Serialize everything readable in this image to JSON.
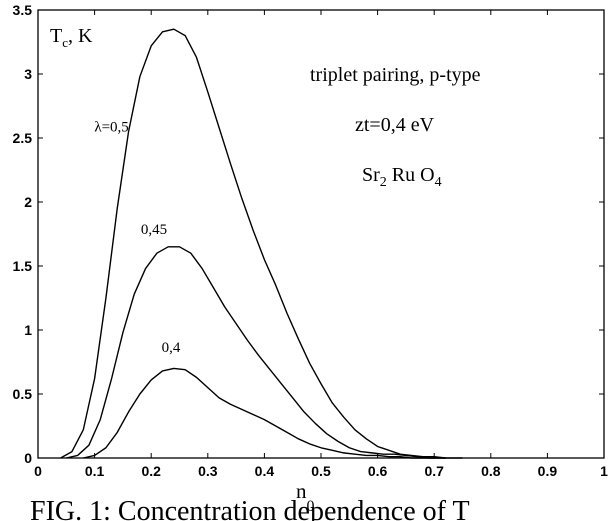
{
  "chart_data": {
    "type": "line",
    "xlabel": "n",
    "xlabel_sub": "0",
    "ylabel": "T",
    "ylabel_sub": "c",
    "ylabel_unit": ", K",
    "xlim": [
      0,
      1
    ],
    "ylim": [
      0,
      3.5
    ],
    "xticks": [
      "0",
      "0.1",
      "0.2",
      "0.3",
      "0.4",
      "0.5",
      "0.6",
      "0.7",
      "0.8",
      "0.9",
      "1"
    ],
    "yticks": [
      "0",
      "0.5",
      "1",
      "1.5",
      "2",
      "2.5",
      "3",
      "3.5"
    ],
    "grid": false,
    "annotations": {
      "line1": "triplet pairing, p-type",
      "line2": "zt=0,4 eV",
      "formula": [
        "Sr",
        "2",
        " Ru O",
        "4"
      ]
    },
    "series": [
      {
        "name": "λ=0,5",
        "x": [
          0.04,
          0.06,
          0.08,
          0.1,
          0.12,
          0.14,
          0.16,
          0.18,
          0.2,
          0.22,
          0.24,
          0.26,
          0.28,
          0.3,
          0.32,
          0.34,
          0.36,
          0.38,
          0.4,
          0.42,
          0.44,
          0.46,
          0.48,
          0.5,
          0.52,
          0.54,
          0.56,
          0.58,
          0.6,
          0.62,
          0.64,
          0.66,
          0.68,
          0.7,
          0.72,
          0.75
        ],
        "y": [
          0.0,
          0.05,
          0.22,
          0.62,
          1.25,
          1.95,
          2.55,
          2.98,
          3.22,
          3.33,
          3.35,
          3.3,
          3.13,
          2.86,
          2.58,
          2.3,
          2.03,
          1.78,
          1.55,
          1.35,
          1.13,
          0.93,
          0.74,
          0.58,
          0.43,
          0.32,
          0.22,
          0.15,
          0.09,
          0.06,
          0.03,
          0.02,
          0.01,
          0.01,
          0.0,
          0.0
        ]
      },
      {
        "name": "0,45",
        "x": [
          0.05,
          0.07,
          0.09,
          0.11,
          0.13,
          0.15,
          0.17,
          0.19,
          0.21,
          0.23,
          0.25,
          0.27,
          0.29,
          0.31,
          0.33,
          0.35,
          0.37,
          0.39,
          0.41,
          0.43,
          0.45,
          0.47,
          0.49,
          0.51,
          0.53,
          0.55,
          0.57,
          0.59,
          0.61,
          0.63,
          0.65,
          0.67,
          0.69,
          0.72
        ],
        "y": [
          0.0,
          0.02,
          0.1,
          0.3,
          0.62,
          0.98,
          1.28,
          1.48,
          1.6,
          1.65,
          1.65,
          1.6,
          1.48,
          1.33,
          1.18,
          1.05,
          0.92,
          0.8,
          0.69,
          0.58,
          0.47,
          0.36,
          0.27,
          0.19,
          0.13,
          0.08,
          0.05,
          0.04,
          0.03,
          0.03,
          0.02,
          0.01,
          0.0,
          0.0
        ]
      },
      {
        "name": "0,4",
        "x": [
          0.08,
          0.1,
          0.12,
          0.14,
          0.16,
          0.18,
          0.2,
          0.22,
          0.24,
          0.26,
          0.28,
          0.3,
          0.32,
          0.34,
          0.36,
          0.38,
          0.4,
          0.42,
          0.44,
          0.46,
          0.48,
          0.5,
          0.52,
          0.54,
          0.56,
          0.58,
          0.6,
          0.62,
          0.64,
          0.66,
          0.68,
          0.7,
          0.72
        ],
        "y": [
          0.0,
          0.02,
          0.08,
          0.2,
          0.36,
          0.5,
          0.61,
          0.68,
          0.7,
          0.69,
          0.63,
          0.55,
          0.47,
          0.42,
          0.38,
          0.34,
          0.3,
          0.25,
          0.2,
          0.15,
          0.11,
          0.08,
          0.06,
          0.04,
          0.03,
          0.02,
          0.02,
          0.01,
          0.01,
          0.0,
          0.0,
          0.0,
          0.0
        ]
      }
    ],
    "series_label_positions": [
      {
        "label": "λ=0,5",
        "x": 0.13,
        "y": 2.55
      },
      {
        "label": "0,45",
        "x": 0.205,
        "y": 1.75
      },
      {
        "label": "0,4",
        "x": 0.235,
        "y": 0.83
      }
    ]
  },
  "caption": "FIG. 1: Concentration dependence of T"
}
